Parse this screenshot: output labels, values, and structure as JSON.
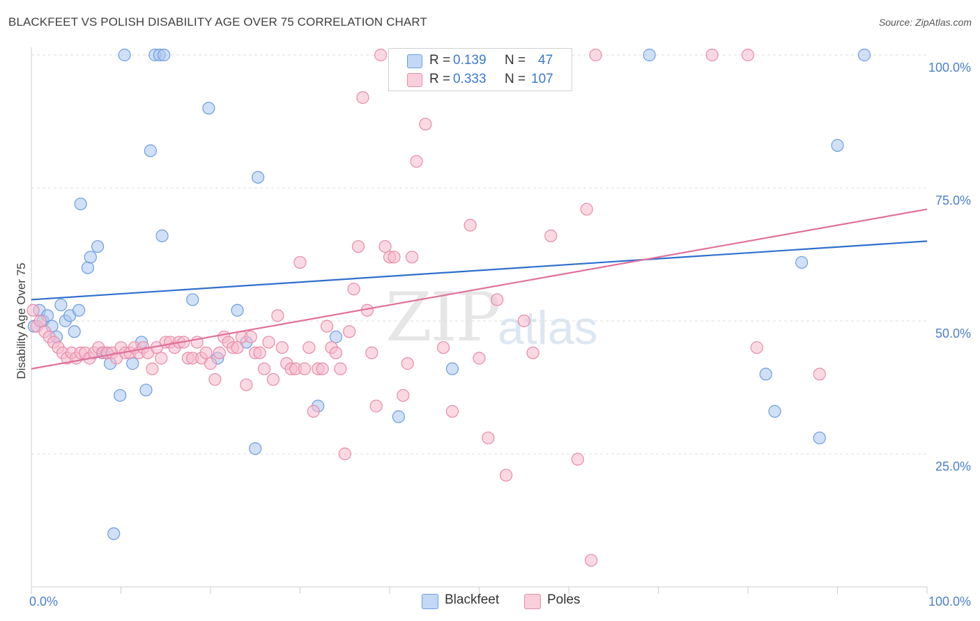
{
  "title": "BLACKFEET VS POLISH DISABILITY AGE OVER 75 CORRELATION CHART",
  "source": "Source: ZipAtlas.com",
  "watermark": {
    "zip": "ZIP",
    "atlas": "atlas"
  },
  "colors": {
    "blackfeet_fill": "#a9c7ef",
    "blackfeet_stroke": "#6d9be0",
    "blackfeet_line": "#2f6fcc",
    "poles_fill": "#f6b9cc",
    "poles_stroke": "#e88aa8",
    "poles_line": "#e0709a",
    "tick_label": "#4a7fd1",
    "grid": "#dddddd"
  },
  "legend": {
    "row1": {
      "r_label": "R =",
      "r_value": "0.139",
      "n_label": "N =",
      "n_value": "47"
    },
    "row2": {
      "r_label": "R =",
      "r_value": "0.333",
      "n_label": "N =",
      "n_value": "107"
    }
  },
  "bottom_legend": {
    "blackfeet": "Blackfeet",
    "poles": "Poles"
  },
  "chart_data": {
    "type": "scatter",
    "title": "BLACKFEET VS POLISH DISABILITY AGE OVER 75 CORRELATION CHART",
    "xlabel": "",
    "ylabel": "Disability Age Over 75",
    "xlim": [
      0,
      100
    ],
    "ylim": [
      0,
      100
    ],
    "x_tick_labels": [
      "0.0%",
      "100.0%"
    ],
    "y_ticks": [
      25,
      50,
      75,
      100
    ],
    "y_tick_labels": [
      "25.0%",
      "50.0%",
      "75.0%",
      "100.0%"
    ],
    "grid": true,
    "legend_position": "top-center",
    "series": [
      {
        "name": "Blackfeet",
        "trend": {
          "x": [
            0,
            100
          ],
          "y": [
            54.0,
            65.0
          ]
        },
        "points": [
          [
            0.3,
            49.0
          ],
          [
            0.9,
            52.0
          ],
          [
            1.3,
            50.0
          ],
          [
            1.8,
            51.0
          ],
          [
            2.3,
            49.0
          ],
          [
            2.8,
            47.0
          ],
          [
            3.3,
            53.0
          ],
          [
            3.8,
            50.0
          ],
          [
            4.3,
            51.0
          ],
          [
            4.8,
            48.0
          ],
          [
            5.3,
            52.0
          ],
          [
            5.5,
            72.0
          ],
          [
            6.3,
            60.0
          ],
          [
            6.6,
            62.0
          ],
          [
            7.4,
            64.0
          ],
          [
            7.9,
            44.0
          ],
          [
            8.4,
            44.0
          ],
          [
            8.8,
            42.0
          ],
          [
            9.2,
            10.0
          ],
          [
            9.9,
            36.0
          ],
          [
            10.4,
            100.0
          ],
          [
            11.3,
            42.0
          ],
          [
            12.3,
            46.0
          ],
          [
            12.8,
            37.0
          ],
          [
            13.3,
            82.0
          ],
          [
            13.8,
            100.0
          ],
          [
            14.3,
            100.0
          ],
          [
            14.6,
            66.0
          ],
          [
            14.8,
            100.0
          ],
          [
            18.0,
            54.0
          ],
          [
            19.8,
            90.0
          ],
          [
            20.8,
            43.0
          ],
          [
            23.0,
            52.0
          ],
          [
            24.0,
            46.0
          ],
          [
            25.0,
            26.0
          ],
          [
            25.3,
            77.0
          ],
          [
            32.0,
            34.0
          ],
          [
            34.0,
            47.0
          ],
          [
            41.0,
            32.0
          ],
          [
            47.0,
            41.0
          ],
          [
            69.0,
            100.0
          ],
          [
            82.0,
            40.0
          ],
          [
            83.0,
            33.0
          ],
          [
            86.0,
            61.0
          ],
          [
            88.0,
            28.0
          ],
          [
            90.0,
            83.0
          ],
          [
            93.0,
            100.0
          ]
        ]
      },
      {
        "name": "Poles",
        "trend": {
          "x": [
            0,
            100
          ],
          "y": [
            41.0,
            71.0
          ]
        },
        "points": [
          [
            0.2,
            52.0
          ],
          [
            0.6,
            49.0
          ],
          [
            1.0,
            50.0
          ],
          [
            1.5,
            48.0
          ],
          [
            2.0,
            47.0
          ],
          [
            2.5,
            46.0
          ],
          [
            3.0,
            45.0
          ],
          [
            3.5,
            44.0
          ],
          [
            4.0,
            43.0
          ],
          [
            4.5,
            44.0
          ],
          [
            5.0,
            43.0
          ],
          [
            5.5,
            44.0
          ],
          [
            6.0,
            44.0
          ],
          [
            6.5,
            43.0
          ],
          [
            7.0,
            44.0
          ],
          [
            7.5,
            45.0
          ],
          [
            8.0,
            44.0
          ],
          [
            8.5,
            44.0
          ],
          [
            9.0,
            44.0
          ],
          [
            9.5,
            43.0
          ],
          [
            10.0,
            45.0
          ],
          [
            10.5,
            44.0
          ],
          [
            11.0,
            44.0
          ],
          [
            11.5,
            45.0
          ],
          [
            12.0,
            44.0
          ],
          [
            12.5,
            45.0
          ],
          [
            13.0,
            44.0
          ],
          [
            13.5,
            41.0
          ],
          [
            14.0,
            45.0
          ],
          [
            14.5,
            43.0
          ],
          [
            15.0,
            46.0
          ],
          [
            15.5,
            46.0
          ],
          [
            16.0,
            45.0
          ],
          [
            16.5,
            46.0
          ],
          [
            17.0,
            46.0
          ],
          [
            17.5,
            43.0
          ],
          [
            18.0,
            43.0
          ],
          [
            18.5,
            46.0
          ],
          [
            19.0,
            43.0
          ],
          [
            19.5,
            44.0
          ],
          [
            20.0,
            42.0
          ],
          [
            20.5,
            39.0
          ],
          [
            21.0,
            44.0
          ],
          [
            21.5,
            47.0
          ],
          [
            22.0,
            46.0
          ],
          [
            22.5,
            45.0
          ],
          [
            23.0,
            45.0
          ],
          [
            23.5,
            47.0
          ],
          [
            24.0,
            38.0
          ],
          [
            24.5,
            47.0
          ],
          [
            25.0,
            44.0
          ],
          [
            25.5,
            44.0
          ],
          [
            26.0,
            41.0
          ],
          [
            26.5,
            46.0
          ],
          [
            27.0,
            39.0
          ],
          [
            27.5,
            51.0
          ],
          [
            28.0,
            45.0
          ],
          [
            28.5,
            42.0
          ],
          [
            29.0,
            41.0
          ],
          [
            29.5,
            41.0
          ],
          [
            30.0,
            61.0
          ],
          [
            30.5,
            41.0
          ],
          [
            31.0,
            45.0
          ],
          [
            31.5,
            33.0
          ],
          [
            32.0,
            41.0
          ],
          [
            32.5,
            41.0
          ],
          [
            33.0,
            49.0
          ],
          [
            33.5,
            45.0
          ],
          [
            34.0,
            44.0
          ],
          [
            34.5,
            41.0
          ],
          [
            35.0,
            25.0
          ],
          [
            35.5,
            48.0
          ],
          [
            36.0,
            56.0
          ],
          [
            36.5,
            64.0
          ],
          [
            37.0,
            92.0
          ],
          [
            37.5,
            52.0
          ],
          [
            38.0,
            44.0
          ],
          [
            38.5,
            34.0
          ],
          [
            39.0,
            100.0
          ],
          [
            39.5,
            64.0
          ],
          [
            40.0,
            62.0
          ],
          [
            40.5,
            62.0
          ],
          [
            41.0,
            100.0
          ],
          [
            41.5,
            36.0
          ],
          [
            42.0,
            42.0
          ],
          [
            42.5,
            62.0
          ],
          [
            43.0,
            80.0
          ],
          [
            44.0,
            87.0
          ],
          [
            45.0,
            100.0
          ],
          [
            46.0,
            45.0
          ],
          [
            47.0,
            33.0
          ],
          [
            49.0,
            68.0
          ],
          [
            50.0,
            43.0
          ],
          [
            51.0,
            28.0
          ],
          [
            52.0,
            54.0
          ],
          [
            53.0,
            21.0
          ],
          [
            55.0,
            50.0
          ],
          [
            56.0,
            44.0
          ],
          [
            58.0,
            66.0
          ],
          [
            61.0,
            24.0
          ],
          [
            62.0,
            71.0
          ],
          [
            62.5,
            5.0
          ],
          [
            63.0,
            100.0
          ],
          [
            76.0,
            100.0
          ],
          [
            80.0,
            100.0
          ],
          [
            81.0,
            45.0
          ],
          [
            88.0,
            40.0
          ]
        ]
      }
    ]
  }
}
